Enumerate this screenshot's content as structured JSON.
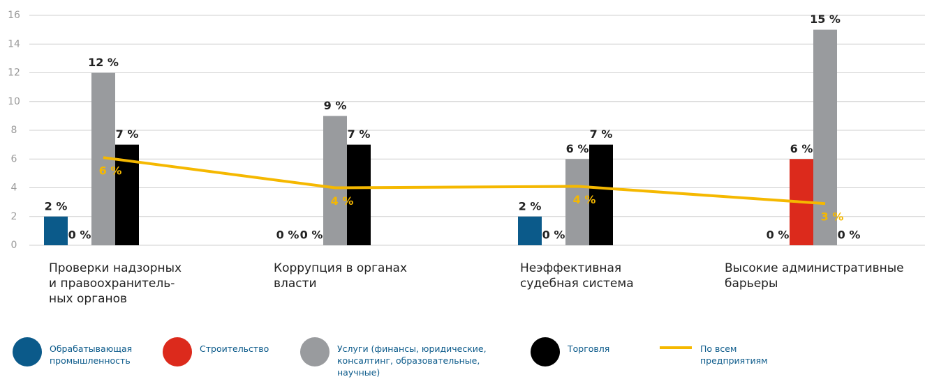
{
  "chart_data": {
    "type": "bar",
    "categories": [
      "Проверки надзорных\nи правоохранитель-\nных органов",
      "Коррупция в органах\nвласти",
      "Неэффективная\nсудебная система",
      "Высокие административные\nбарьеры"
    ],
    "series": [
      {
        "name": "Обрабатывающая промышленность",
        "color": "#0b5a8a",
        "values": [
          2,
          0,
          2,
          0
        ],
        "value_labels": [
          "2 %",
          "0 %",
          "2 %",
          "0 %"
        ]
      },
      {
        "name": "Строительство",
        "color": "#dc2a1c",
        "values": [
          0,
          0,
          0,
          6
        ],
        "value_labels": [
          "0 %",
          "0 %",
          "0 %",
          "6 %"
        ]
      },
      {
        "name": "Услуги (финансы, юридические, консалтинг, образовательные, научные)",
        "color": "#999b9e",
        "values": [
          12,
          9,
          6,
          15
        ],
        "value_labels": [
          "12 %",
          "9 %",
          "6 %",
          "15 %"
        ]
      },
      {
        "name": "Торговля",
        "color": "#000000",
        "values": [
          7,
          7,
          7,
          0
        ],
        "value_labels": [
          "7 %",
          "7 %",
          "7 %",
          "0 %"
        ]
      },
      {
        "name": "По всем предприятиям",
        "type": "line",
        "color": "#f5b800",
        "values": [
          6.1,
          4,
          4.1,
          2.9
        ],
        "value_labels": [
          "6 %",
          "4 %",
          "4 %",
          "3 %"
        ]
      }
    ],
    "ylim": [
      0,
      16
    ],
    "yticks": [
      0,
      2,
      4,
      6,
      8,
      10,
      12,
      14,
      16
    ],
    "grid": true
  }
}
